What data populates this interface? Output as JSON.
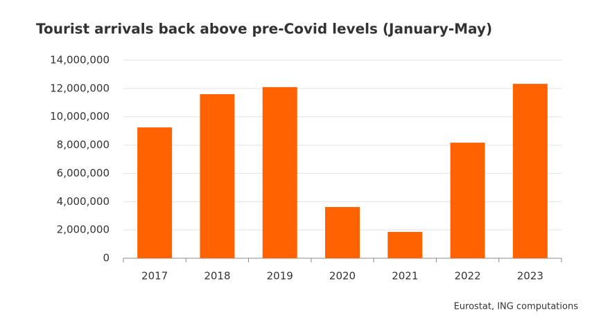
{
  "chart_data": {
    "type": "bar",
    "title": "Tourist arrivals back above pre-Covid levels (January-May)",
    "source": "Eurostat, ING computations",
    "categories": [
      "2017",
      "2018",
      "2019",
      "2020",
      "2021",
      "2022",
      "2023"
    ],
    "values": [
      9250000,
      11600000,
      12100000,
      3620000,
      1860000,
      8170000,
      12330000
    ],
    "color": "#ff6200",
    "ylim": [
      0,
      14000000
    ],
    "yticks": [
      0,
      {
        "value": 2000000,
        "label": "2,000,000"
      },
      {
        "value": 4000000,
        "label": "4,000,000"
      },
      {
        "value": 6000000,
        "label": "6,000,000"
      },
      {
        "value": 8000000,
        "label": "8,000,000"
      },
      {
        "value": 10000000,
        "label": "10,000,000"
      },
      {
        "value": 12000000,
        "label": "12,000,000"
      },
      {
        "value": 14000000,
        "label": "14,000,000"
      }
    ],
    "grid": true
  }
}
